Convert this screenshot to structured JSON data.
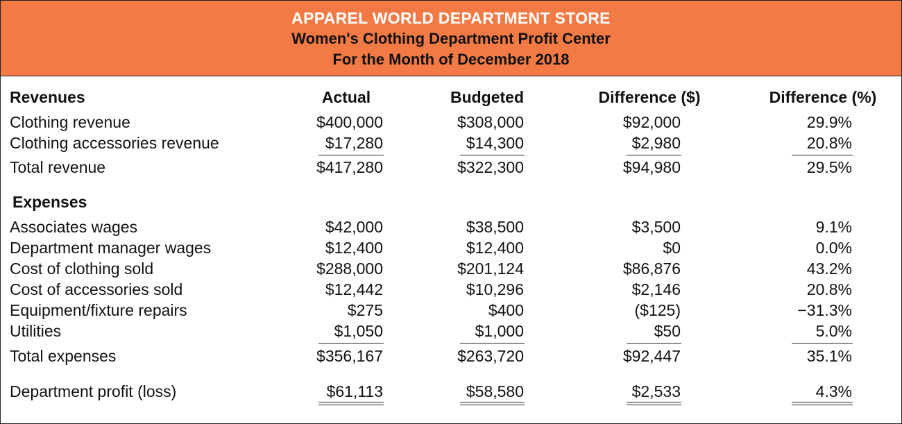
{
  "header": {
    "company": "APPAREL WORLD DEPARTMENT STORE",
    "subtitle": "Women's Clothing Department Profit Center",
    "period": "For the Month of December 2018"
  },
  "columns": {
    "section": "Revenues",
    "actual": "Actual",
    "budgeted": "Budgeted",
    "diff_dollar": "Difference ($)",
    "diff_pct": "Difference (%)"
  },
  "revenues": [
    {
      "label": "Clothing revenue",
      "actual": "$400,000",
      "budgeted": "$308,000",
      "diff_dollar": "$92,000",
      "diff_pct": "29.9%"
    },
    {
      "label": "Clothing accessories revenue",
      "actual": "$17,280",
      "budgeted": "$14,300",
      "diff_dollar": "$2,980",
      "diff_pct": "20.8%"
    }
  ],
  "total_revenue": {
    "label": "Total revenue",
    "actual": "$417,280",
    "budgeted": "$322,300",
    "diff_dollar": "$94,980",
    "diff_pct": "29.5%"
  },
  "expenses_title": "Expenses",
  "expenses": [
    {
      "label": "Associates wages",
      "actual": "$42,000",
      "budgeted": "$38,500",
      "diff_dollar": "$3,500",
      "diff_pct": "9.1%"
    },
    {
      "label": "Department manager wages",
      "actual": "$12,400",
      "budgeted": "$12,400",
      "diff_dollar": "$0",
      "diff_pct": "0.0%"
    },
    {
      "label": "Cost of clothing sold",
      "actual": "$288,000",
      "budgeted": "$201,124",
      "diff_dollar": "$86,876",
      "diff_pct": "43.2%"
    },
    {
      "label": "Cost of accessories sold",
      "actual": "$12,442",
      "budgeted": "$10,296",
      "diff_dollar": "$2,146",
      "diff_pct": "20.8%"
    },
    {
      "label": "Equipment/fixture repairs",
      "actual": "$275",
      "budgeted": "$400",
      "diff_dollar": "($125)",
      "diff_pct": "−31.3%"
    },
    {
      "label": "Utilities",
      "actual": "$1,050",
      "budgeted": "$1,000",
      "diff_dollar": "$50",
      "diff_pct": "5.0%"
    }
  ],
  "total_expenses": {
    "label": "Total expenses",
    "actual": "$356,167",
    "budgeted": "$263,720",
    "diff_dollar": "$92,447",
    "diff_pct": "35.1%"
  },
  "profit": {
    "label": "Department profit (loss)",
    "actual": "$61,113",
    "budgeted": "$58,580",
    "diff_dollar": "$2,533",
    "diff_pct": "4.3%"
  }
}
